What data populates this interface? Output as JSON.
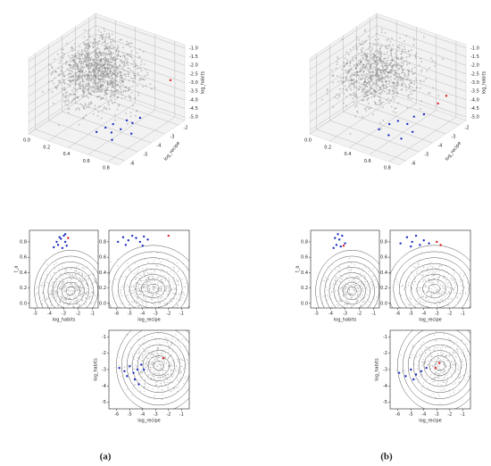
{
  "panel_labels": [
    "(a)",
    "(b)"
  ],
  "chart_data": [
    {
      "type": "scatter3d",
      "ylabel": "log_recipe",
      "zlabel": "log_habits",
      "xlim": [
        0,
        0.9
      ],
      "ylim": [
        -6.5,
        -1.5
      ],
      "zlim": [
        -5.2,
        -0.8
      ],
      "xticks": [
        {
          "value": 0,
          "label": "0.0"
        },
        0.2,
        0.4,
        0.6,
        0.8
      ],
      "yticks": [
        -2,
        -3,
        -4,
        -5,
        -6
      ],
      "zticks": [
        {
          "value": -1,
          "label": "-1.0"
        },
        -1.5,
        {
          "value": -2,
          "label": "-2.0"
        },
        -2.5,
        {
          "value": -3,
          "label": "-3.0"
        },
        -3.5,
        {
          "value": -4,
          "label": "-4.0"
        },
        -4.5,
        {
          "value": -5,
          "label": "-5.0"
        }
      ],
      "series": [
        {
          "color": "#1f2fbf",
          "x": [
            0.55,
            0.6,
            0.65,
            0.7,
            0.72,
            0.75,
            0.78,
            0.62,
            0.68,
            0.8
          ],
          "y": [
            -5.5,
            -5.2,
            -5.0,
            -4.8,
            -4.5,
            -4.3,
            -4.6,
            -4.9,
            -5.3,
            -4.1
          ],
          "z": [
            -4.5,
            -4.3,
            -4.1,
            -4.4,
            -4.0,
            -4.2,
            -4.6,
            -4.7,
            -4.8,
            -3.9
          ]
        },
        {
          "color": "#e02020",
          "x": [
            0.85
          ],
          "y": [
            -2.2
          ],
          "z": [
            -2.6
          ]
        }
      ]
    },
    {
      "type": "scatter",
      "xlabel": "log_habits",
      "ylabel": "t_a",
      "xlim": [
        -5.4,
        -0.6
      ],
      "ylim": [
        -0.06,
        0.95
      ],
      "xticks": [
        -5,
        -4,
        -3,
        -2,
        -1
      ],
      "yticks": [
        {
          "value": 0,
          "label": "0.0"
        },
        0.2,
        0.4,
        0.6,
        0.8
      ],
      "series": [
        {
          "color": "#1f2fbf",
          "x": [
            -3.7,
            -3.4,
            -3.2,
            -3.0,
            -2.9,
            -2.8,
            -3.1,
            -3.3,
            -2.9,
            -3.5
          ],
          "values": [
            0.73,
            0.76,
            0.84,
            0.88,
            0.8,
            0.75,
            0.72,
            0.86,
            0.9,
            0.8
          ]
        },
        {
          "color": "#e02020",
          "x": [
            -2.7
          ],
          "values": [
            0.85
          ]
        }
      ]
    },
    {
      "type": "scatter",
      "xlabel": "log_recipe",
      "xlim": [
        -6.6,
        -0.4
      ],
      "ylim": [
        -0.06,
        0.95
      ],
      "xticks": [
        -6,
        -5,
        -4,
        -3,
        -2,
        -1
      ],
      "yticks": [
        {
          "value": 0,
          "label": "0.0"
        },
        0.2,
        0.4,
        0.6,
        0.8
      ],
      "series": [
        {
          "color": "#1f2fbf",
          "x": [
            -5.9,
            -5.5,
            -5.1,
            -4.8,
            -4.5,
            -4.2,
            -3.9,
            -3.6,
            -5.3,
            -4.0
          ],
          "values": [
            0.8,
            0.86,
            0.82,
            0.88,
            0.85,
            0.8,
            0.87,
            0.83,
            0.76,
            0.75
          ]
        },
        {
          "color": "#e02020",
          "x": [
            -2.0
          ],
          "values": [
            0.88
          ]
        }
      ]
    },
    {
      "type": "scatter",
      "xlabel": "log_recipe",
      "ylabel": "log_habits",
      "xlim": [
        -6.6,
        -0.4
      ],
      "ylim": [
        -5.4,
        -0.6
      ],
      "xticks": [
        -6,
        -5,
        -4,
        -3,
        -2,
        -1
      ],
      "yticks": [
        -5,
        -4,
        -3,
        -2,
        -1
      ],
      "series": [
        {
          "color": "#1f2fbf",
          "x": [
            -5.8,
            -5.4,
            -5.0,
            -4.7,
            -4.4,
            -4.1,
            -5.2,
            -4.6,
            -3.9,
            -4.3
          ],
          "values": [
            -2.9,
            -3.1,
            -2.8,
            -3.2,
            -3.0,
            -2.7,
            -3.4,
            -3.6,
            -3.0,
            -3.9
          ]
        },
        {
          "color": "#e02020",
          "x": [
            -2.4
          ],
          "values": [
            -2.3
          ]
        }
      ]
    },
    {
      "type": "scatter3d",
      "ylabel": "log_recipe",
      "zlabel": "log_habits",
      "xlim": [
        0,
        0.9
      ],
      "ylim": [
        -6.5,
        -1.5
      ],
      "zlim": [
        -5.2,
        -0.8
      ],
      "xticks": [
        {
          "value": 0,
          "label": "0.0"
        },
        0.2,
        0.4,
        0.6,
        0.8
      ],
      "yticks": [
        -2,
        -3,
        -4,
        -5,
        -6
      ],
      "zticks": [
        {
          "value": -1,
          "label": "-1.0"
        },
        -1.5,
        {
          "value": -2,
          "label": "-2.0"
        },
        -2.5,
        {
          "value": -3,
          "label": "-3.0"
        },
        -3.5,
        {
          "value": -4,
          "label": "-4.0"
        },
        -4.5,
        {
          "value": -5,
          "label": "-5.0"
        }
      ],
      "series": [
        {
          "color": "#1f2fbf",
          "x": [
            0.55,
            0.6,
            0.66,
            0.7,
            0.74,
            0.78,
            0.62,
            0.8,
            0.72
          ],
          "y": [
            -5.4,
            -5.0,
            -4.8,
            -4.4,
            -4.2,
            -4.6,
            -5.2,
            -3.9,
            -5.0
          ],
          "z": [
            -4.4,
            -4.2,
            -4.0,
            -4.3,
            -3.9,
            -4.5,
            -4.7,
            -3.8,
            -4.8
          ]
        },
        {
          "color": "#e02020",
          "x": [
            0.82,
            0.85
          ],
          "y": [
            -3.0,
            -2.6
          ],
          "z": [
            -3.6,
            -3.3
          ]
        }
      ]
    },
    {
      "type": "scatter",
      "xlabel": "log_habits",
      "ylabel": "t_a",
      "xlim": [
        -5.4,
        -0.6
      ],
      "ylim": [
        -0.06,
        0.95
      ],
      "xticks": [
        -5,
        -4,
        -3,
        -2,
        -1
      ],
      "yticks": [
        {
          "value": 0,
          "label": "0.0"
        },
        0.2,
        0.4,
        0.6,
        0.8
      ],
      "series": [
        {
          "color": "#1f2fbf",
          "x": [
            -3.8,
            -3.6,
            -3.4,
            -3.2,
            -3.0,
            -3.5,
            -3.3,
            -3.7
          ],
          "values": [
            0.72,
            0.76,
            0.83,
            0.88,
            0.78,
            0.9,
            0.74,
            0.85
          ]
        },
        {
          "color": "#e02020",
          "x": [
            -3.1
          ],
          "values": [
            0.75
          ]
        }
      ]
    },
    {
      "type": "scatter",
      "xlabel": "log_recipe",
      "xlim": [
        -6.6,
        -0.4
      ],
      "ylim": [
        -0.06,
        0.95
      ],
      "xticks": [
        -6,
        -5,
        -4,
        -3,
        -2,
        -1
      ],
      "yticks": [
        {
          "value": 0,
          "label": "0.0"
        },
        0.2,
        0.4,
        0.6,
        0.8
      ],
      "series": [
        {
          "color": "#1f2fbf",
          "x": [
            -5.8,
            -5.3,
            -4.9,
            -4.6,
            -4.3,
            -4.0,
            -3.6,
            -5.0
          ],
          "values": [
            0.78,
            0.86,
            0.8,
            0.88,
            0.76,
            0.82,
            0.78,
            0.74
          ]
        },
        {
          "color": "#e02020",
          "x": [
            -3.0,
            -2.7
          ],
          "values": [
            0.8,
            0.76
          ]
        }
      ]
    },
    {
      "type": "scatter",
      "xlabel": "log_recipe",
      "ylabel": "log_habits",
      "xlim": [
        -6.6,
        -0.4
      ],
      "ylim": [
        -5.4,
        -0.6
      ],
      "xticks": [
        -6,
        -5,
        -4,
        -3,
        -2,
        -1
      ],
      "yticks": [
        -5,
        -4,
        -3,
        -2,
        -1
      ],
      "series": [
        {
          "color": "#1f2fbf",
          "x": [
            -5.9,
            -5.4,
            -5.0,
            -4.6,
            -4.2,
            -3.8,
            -4.8
          ],
          "values": [
            -3.2,
            -3.4,
            -3.0,
            -3.3,
            -3.1,
            -2.9,
            -3.6
          ]
        },
        {
          "color": "#e02020",
          "x": [
            -3.1,
            -2.8
          ],
          "values": [
            -2.9,
            -2.6
          ]
        }
      ]
    }
  ]
}
